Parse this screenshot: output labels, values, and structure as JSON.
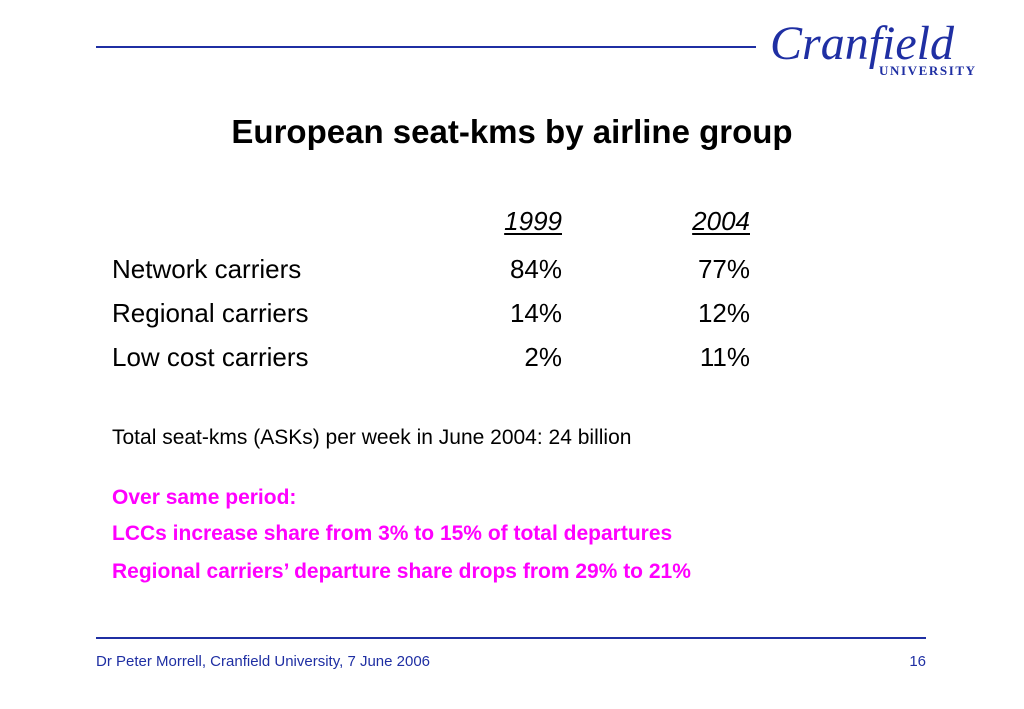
{
  "logo": {
    "word": "Cranfield",
    "sub": "UNIVERSITY"
  },
  "title": "European seat-kms by airline group",
  "table": {
    "years": [
      "1999",
      "2004"
    ],
    "rows": [
      {
        "label": "Network carriers",
        "v1999": "84%",
        "v2004": "77%"
      },
      {
        "label": "Regional carriers",
        "v1999": "14%",
        "v2004": "12%"
      },
      {
        "label": "Low cost carriers",
        "v1999": "2%",
        "v2004": "11%"
      }
    ]
  },
  "total_note": "Total seat-kms (ASKs) per week in June 2004: 24 billion",
  "highlights": [
    "Over same period:",
    "LCCs increase share from 3% to 15% of total departures",
    "Regional carriers’ departure share drops from 29% to 21%"
  ],
  "colors": {
    "rule": "#1f2fa3",
    "highlight": "#ff00ff"
  },
  "footer": {
    "left": "Dr Peter Morrell, Cranfield University, 7 June 2006",
    "page_number": "16"
  }
}
